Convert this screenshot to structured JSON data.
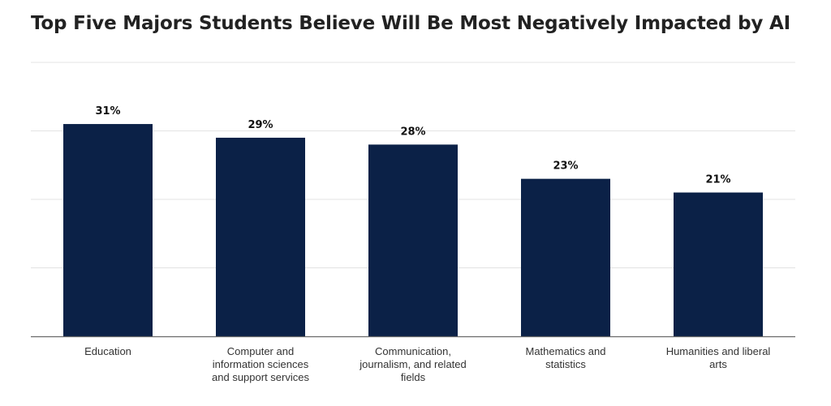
{
  "title": "Top Five Majors Students Believe Will Be Most Negatively Impacted by AI",
  "chart_data": {
    "type": "bar",
    "title": "Top Five Majors Students Believe Will Be Most Negatively Impacted by AI",
    "categories": [
      "Education",
      "Computer and information sciences and support services",
      "Communication, journalism, and related fields",
      "Mathematics and statistics",
      "Humanities and liberal arts"
    ],
    "category_label_lines": [
      [
        "Education"
      ],
      [
        "Computer and",
        "information sciences",
        "and support services"
      ],
      [
        "Communication,",
        "journalism, and related",
        "fields"
      ],
      [
        "Mathematics and",
        "statistics"
      ],
      [
        "Humanities and liberal",
        "arts"
      ]
    ],
    "values": [
      31,
      29,
      28,
      23,
      21
    ],
    "value_labels": [
      "31%",
      "29%",
      "28%",
      "23%",
      "21%"
    ],
    "xlabel": "",
    "ylabel": "",
    "ylim": [
      0,
      40
    ],
    "grid": true,
    "legend": "none"
  },
  "colors": {
    "bar": "#0b2147",
    "grid": "#e3e3e3",
    "axis": "#6a6a6a"
  }
}
